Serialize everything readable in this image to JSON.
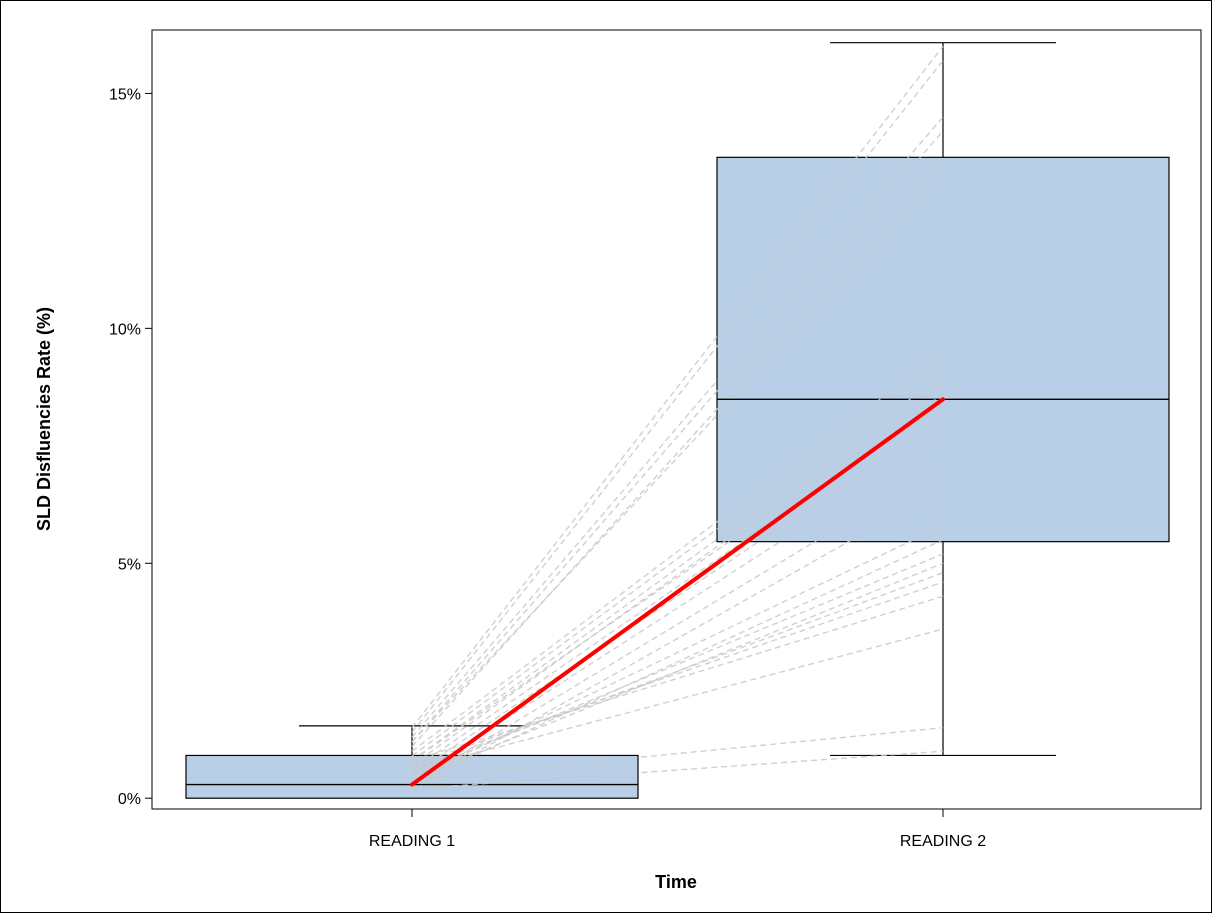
{
  "chart_data": {
    "type": "box",
    "title": "",
    "xlabel": "Time",
    "ylabel": "SLD Disfluencies Rate (%)",
    "ylim": [
      -0.0023,
      0.1635
    ],
    "y_ticks": [
      0,
      0.05,
      0.1,
      0.15
    ],
    "y_tick_labels": [
      "0%",
      "5%",
      "10%",
      "15%"
    ],
    "categories": [
      "READING 1",
      "READING 2"
    ],
    "boxes": [
      {
        "category": "READING 1",
        "whisker_low": 0.0,
        "q1": 0.0,
        "median": 0.0029,
        "q3": 0.0091,
        "whisker_high": 0.0154
      },
      {
        "category": "READING 2",
        "whisker_low": 0.0091,
        "q1": 0.0546,
        "median": 0.0849,
        "q3": 0.1364,
        "whisker_high": 0.1608
      }
    ],
    "mean_line": {
      "from": 0.0029,
      "to": 0.0849,
      "color": "#ff0000"
    },
    "individual_lines": [
      {
        "from": 0.015,
        "to": 0.16
      },
      {
        "from": 0.014,
        "to": 0.157
      },
      {
        "from": 0.013,
        "to": 0.145
      },
      {
        "from": 0.012,
        "to": 0.142
      },
      {
        "from": 0.011,
        "to": 0.136
      },
      {
        "from": 0.012,
        "to": 0.133
      },
      {
        "from": 0.01,
        "to": 0.095
      },
      {
        "from": 0.009,
        "to": 0.093
      },
      {
        "from": 0.008,
        "to": 0.09
      },
      {
        "from": 0.007,
        "to": 0.088
      },
      {
        "from": 0.008,
        "to": 0.086
      },
      {
        "from": 0.006,
        "to": 0.084
      },
      {
        "from": 0.005,
        "to": 0.081
      },
      {
        "from": 0.004,
        "to": 0.077
      },
      {
        "from": 0.003,
        "to": 0.071
      },
      {
        "from": 0.002,
        "to": 0.066
      },
      {
        "from": 0.004,
        "to": 0.058
      },
      {
        "from": 0.003,
        "to": 0.055
      },
      {
        "from": 0.005,
        "to": 0.052
      },
      {
        "from": 0.004,
        "to": 0.05
      },
      {
        "from": 0.006,
        "to": 0.048
      },
      {
        "from": 0.007,
        "to": 0.046
      },
      {
        "from": 0.008,
        "to": 0.043
      },
      {
        "from": 0.006,
        "to": 0.036
      },
      {
        "from": 0.004,
        "to": 0.015
      },
      {
        "from": 0.002,
        "to": 0.01
      }
    ],
    "grid": false,
    "legend": "none",
    "colors": {
      "box_fill": "#b9cfe7",
      "box_stroke": "#000000",
      "mean": "#ff0000",
      "individual": "#c8c8c8"
    }
  }
}
